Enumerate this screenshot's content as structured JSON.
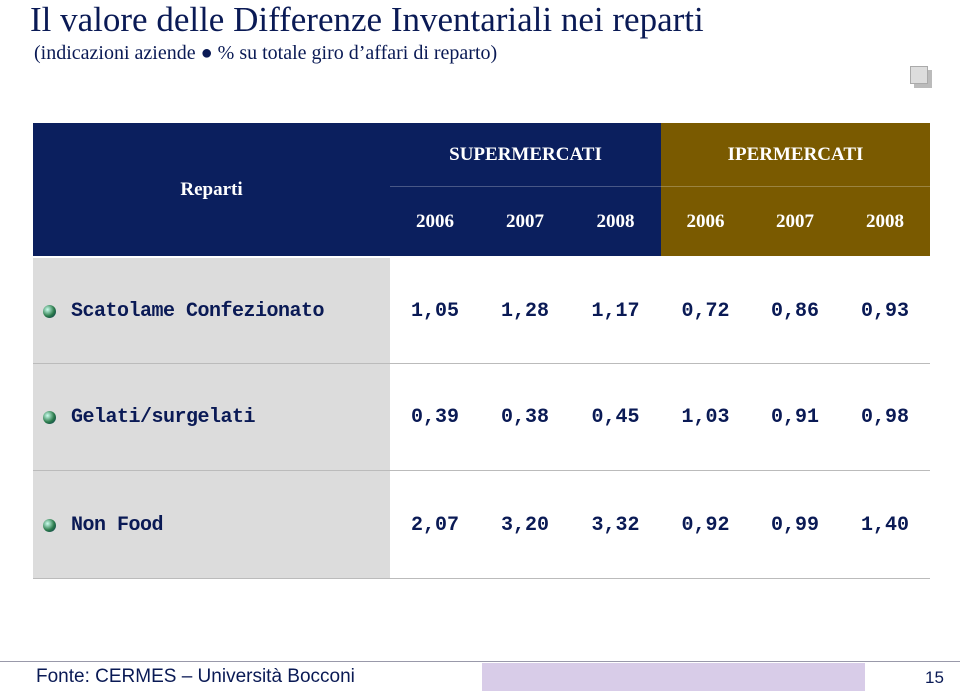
{
  "header": {
    "title": "Il valore delle Differenze Inventariali nei reparti",
    "subtitle": "(indicazioni aziende ● % su totale giro d’affari di reparto)"
  },
  "table": {
    "row_header": "Reparti",
    "groups": [
      {
        "name": "SUPERMERCATI",
        "years": [
          "2006",
          "2007",
          "2008"
        ]
      },
      {
        "name": "IPERMERCATI",
        "years": [
          "2006",
          "2007",
          "2008"
        ]
      }
    ],
    "rows": [
      [
        "Scatolame Confezionato",
        "1,05",
        "1,28",
        "1,17",
        "0,72",
        "0,86",
        "0,93"
      ],
      [
        "Gelati/surgelati",
        "0,39",
        "0,38",
        "0,45",
        "1,03",
        "0,91",
        "0,98"
      ],
      [
        "Non Food",
        "2,07",
        "3,20",
        "3,32",
        "0,92",
        "0,99",
        "1,40"
      ]
    ]
  },
  "footer": {
    "source": "Fonte: CERMES – Università Bocconi",
    "page": "15"
  }
}
